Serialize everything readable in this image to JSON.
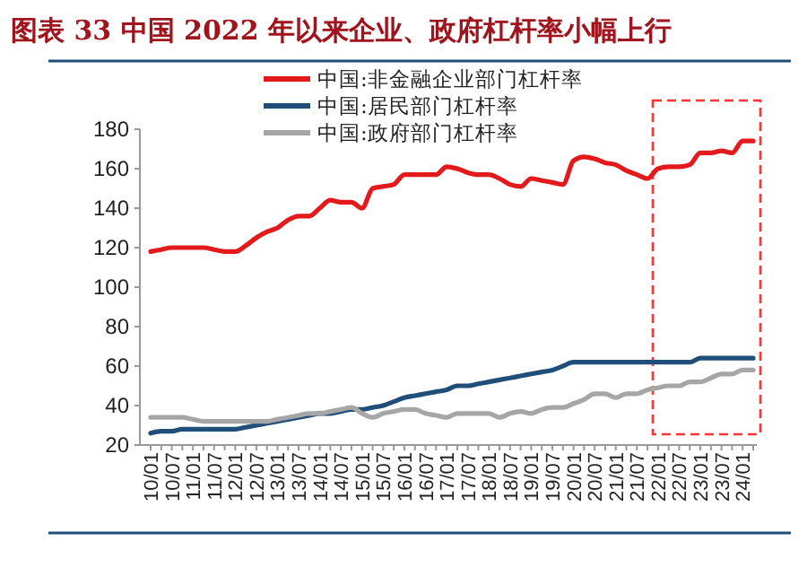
{
  "chart_data": {
    "type": "line",
    "title": "图表 33  中国 2022 年以来企业、政府杠杆率小幅上行",
    "categories": [
      "10/01",
      null,
      "10/07",
      null,
      "11/01",
      null,
      "11/07",
      null,
      "12/01",
      null,
      "12/07",
      null,
      "13/01",
      null,
      "13/07",
      null,
      "14/01",
      null,
      "14/07",
      null,
      "15/01",
      null,
      "15/07",
      null,
      "16/01",
      null,
      "16/07",
      null,
      "17/01",
      null,
      "17/07",
      null,
      "18/01",
      null,
      "18/07",
      null,
      "19/01",
      null,
      "19/07",
      null,
      "20/01",
      null,
      "20/07",
      null,
      "21/01",
      null,
      "21/07",
      null,
      "22/01",
      null,
      "22/07",
      null,
      "23/01",
      null,
      "23/07",
      null,
      "24/01",
      null
    ],
    "series": [
      {
        "name": "中国:非金融企业部门杠杆率",
        "color": "#e31a1c",
        "values": [
          118,
          119,
          120,
          120,
          120,
          120,
          119,
          118,
          118,
          121,
          125,
          128,
          130,
          134,
          136,
          136,
          140,
          144,
          143,
          143,
          140,
          150,
          151,
          152,
          157,
          157,
          157,
          157,
          161,
          160,
          158,
          157,
          157,
          155,
          152,
          151,
          155,
          154,
          153,
          152,
          164,
          166,
          165,
          163,
          162,
          159,
          157,
          155,
          160,
          161,
          161,
          162,
          168,
          168,
          169,
          168,
          174,
          174
        ]
      },
      {
        "name": "中国:居民部门杠杆率",
        "color": "#1f4e79",
        "values": [
          26,
          27,
          27,
          28,
          28,
          28,
          28,
          28,
          28,
          29,
          30,
          31,
          32,
          33,
          34,
          35,
          36,
          36,
          37,
          38,
          38,
          39,
          40,
          42,
          44,
          45,
          46,
          47,
          48,
          50,
          50,
          51,
          52,
          53,
          54,
          55,
          56,
          57,
          58,
          60,
          62,
          62,
          62,
          62,
          62,
          62,
          62,
          62,
          62,
          62,
          62,
          62,
          64,
          64,
          64,
          64,
          64,
          64
        ]
      },
      {
        "name": "中国:政府部门杠杆率",
        "color": "#a6a6a6",
        "values": [
          34,
          34,
          34,
          34,
          33,
          32,
          32,
          32,
          32,
          32,
          32,
          32,
          33,
          34,
          35,
          36,
          36,
          37,
          38,
          39,
          36,
          34,
          36,
          37,
          38,
          38,
          36,
          35,
          34,
          36,
          36,
          36,
          36,
          34,
          36,
          37,
          36,
          38,
          39,
          39,
          41,
          43,
          46,
          46,
          44,
          46,
          46,
          48,
          49,
          50,
          50,
          52,
          52,
          54,
          56,
          56,
          58,
          58
        ]
      }
    ],
    "ylim": [
      20,
      180
    ],
    "yticks": [
      20,
      40,
      60,
      80,
      100,
      120,
      140,
      160,
      180
    ],
    "legend": "top",
    "grid": false,
    "marker": "none",
    "line_style": "solid"
  }
}
